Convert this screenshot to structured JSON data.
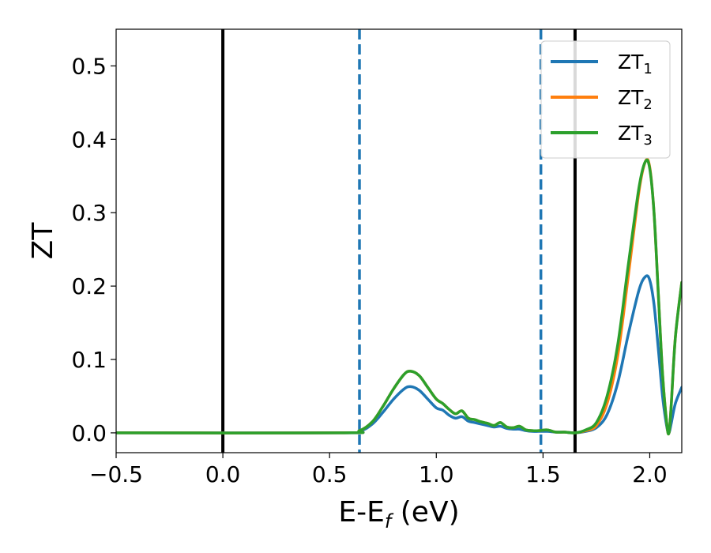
{
  "chart_data": {
    "type": "line",
    "xlabel": "E-E",
    "xlabel_sub": "f",
    "xlabel_unit": " (eV)",
    "ylabel": "ZT",
    "xlim": [
      -0.5,
      2.15
    ],
    "ylim": [
      -0.027,
      0.55
    ],
    "x_ticks": [
      -0.5,
      0.0,
      0.5,
      1.0,
      1.5,
      2.0
    ],
    "x_tick_labels": [
      "−0.5",
      "0.0",
      "0.5",
      "1.0",
      "1.5",
      "2.0"
    ],
    "y_ticks": [
      0.0,
      0.1,
      0.2,
      0.3,
      0.4,
      0.5
    ],
    "y_tick_labels": [
      "0.0",
      "0.1",
      "0.2",
      "0.3",
      "0.4",
      "0.5"
    ],
    "grid": false,
    "legend": "top-right",
    "vlines": [
      {
        "x": 0.0,
        "style": "solid",
        "color": "#000000"
      },
      {
        "x": 1.65,
        "style": "solid",
        "color": "#000000"
      },
      {
        "x": 0.64,
        "style": "dashed",
        "color": "#1f77b4"
      },
      {
        "x": 1.49,
        "style": "dashed",
        "color": "#1f77b4"
      }
    ],
    "series": [
      {
        "name": "ZT",
        "sub": "1",
        "color": "#1f77b4",
        "x": [
          -0.5,
          0.55,
          0.64,
          0.7,
          0.75,
          0.8,
          0.85,
          0.88,
          0.92,
          0.96,
          1.0,
          1.03,
          1.06,
          1.09,
          1.12,
          1.15,
          1.18,
          1.21,
          1.24,
          1.27,
          1.3,
          1.33,
          1.36,
          1.39,
          1.42,
          1.45,
          1.48,
          1.52,
          1.56,
          1.6,
          1.65,
          1.7,
          1.75,
          1.8,
          1.85,
          1.9,
          1.95,
          1.98,
          2.0,
          2.02,
          2.04,
          2.06,
          2.08,
          2.09,
          2.1,
          2.12,
          2.15
        ],
        "y": [
          0.0,
          0.0,
          0.002,
          0.012,
          0.028,
          0.046,
          0.06,
          0.063,
          0.058,
          0.046,
          0.034,
          0.031,
          0.024,
          0.02,
          0.022,
          0.016,
          0.014,
          0.012,
          0.01,
          0.008,
          0.009,
          0.006,
          0.005,
          0.005,
          0.003,
          0.002,
          0.002,
          0.002,
          0.001,
          0.001,
          0.0,
          0.002,
          0.007,
          0.025,
          0.068,
          0.135,
          0.195,
          0.213,
          0.208,
          0.175,
          0.115,
          0.05,
          0.008,
          0.0,
          0.012,
          0.04,
          0.062
        ]
      },
      {
        "name": "ZT",
        "sub": "2",
        "color": "#ff7f0e",
        "x": [
          -0.5,
          0.55,
          0.64,
          0.7,
          0.75,
          0.8,
          0.85,
          0.88,
          0.92,
          0.96,
          1.0,
          1.03,
          1.06,
          1.09,
          1.12,
          1.15,
          1.18,
          1.21,
          1.24,
          1.27,
          1.3,
          1.33,
          1.36,
          1.39,
          1.42,
          1.45,
          1.48,
          1.52,
          1.56,
          1.6,
          1.65,
          1.7,
          1.75,
          1.8,
          1.85,
          1.9,
          1.95,
          1.98,
          2.0,
          2.02,
          2.04,
          2.06,
          2.08,
          2.09,
          2.1,
          2.12,
          2.15
        ],
        "y": [
          0.0,
          0.0,
          0.003,
          0.015,
          0.036,
          0.06,
          0.08,
          0.084,
          0.078,
          0.062,
          0.046,
          0.04,
          0.032,
          0.026,
          0.03,
          0.02,
          0.018,
          0.015,
          0.013,
          0.01,
          0.014,
          0.008,
          0.007,
          0.009,
          0.004,
          0.003,
          0.003,
          0.004,
          0.001,
          0.001,
          0.0,
          0.003,
          0.01,
          0.04,
          0.105,
          0.215,
          0.33,
          0.37,
          0.362,
          0.3,
          0.19,
          0.08,
          0.012,
          0.0,
          0.035,
          0.13,
          0.205
        ]
      },
      {
        "name": "ZT",
        "sub": "3",
        "color": "#2ca02c",
        "x": [
          -0.5,
          0.55,
          0.64,
          0.7,
          0.75,
          0.8,
          0.85,
          0.88,
          0.92,
          0.96,
          1.0,
          1.03,
          1.06,
          1.09,
          1.12,
          1.15,
          1.18,
          1.21,
          1.24,
          1.27,
          1.3,
          1.33,
          1.36,
          1.39,
          1.42,
          1.45,
          1.48,
          1.52,
          1.56,
          1.6,
          1.65,
          1.7,
          1.75,
          1.8,
          1.85,
          1.9,
          1.95,
          1.98,
          2.0,
          2.02,
          2.04,
          2.06,
          2.08,
          2.09,
          2.1,
          2.12,
          2.15
        ],
        "y": [
          0.0,
          0.0,
          0.003,
          0.015,
          0.036,
          0.06,
          0.08,
          0.084,
          0.078,
          0.062,
          0.046,
          0.04,
          0.032,
          0.026,
          0.03,
          0.02,
          0.018,
          0.015,
          0.013,
          0.01,
          0.014,
          0.008,
          0.007,
          0.009,
          0.004,
          0.003,
          0.003,
          0.004,
          0.001,
          0.001,
          0.0,
          0.004,
          0.014,
          0.05,
          0.12,
          0.23,
          0.335,
          0.37,
          0.36,
          0.3,
          0.19,
          0.08,
          0.012,
          0.0,
          0.035,
          0.13,
          0.205
        ]
      }
    ]
  }
}
